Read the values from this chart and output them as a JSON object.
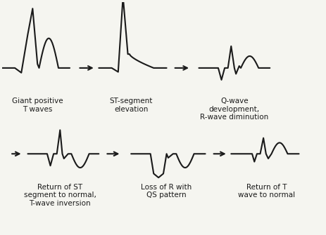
{
  "bg_color": "#f5f5f0",
  "line_color": "#1a1a1a",
  "arrow_color": "#1a1a1a",
  "labels": [
    "Giant positive\nT waves",
    "ST-segment\nelevation",
    "Q-wave\ndevelopment,\nR-wave diminution",
    "Return of ST\nsegment to normal,\nT-wave inversion",
    "Loss of R with\nQS pattern",
    "Return of T\nwave to normal"
  ],
  "label_fontsize": 7.5,
  "figsize": [
    4.64,
    3.35
  ],
  "dpi": 100
}
